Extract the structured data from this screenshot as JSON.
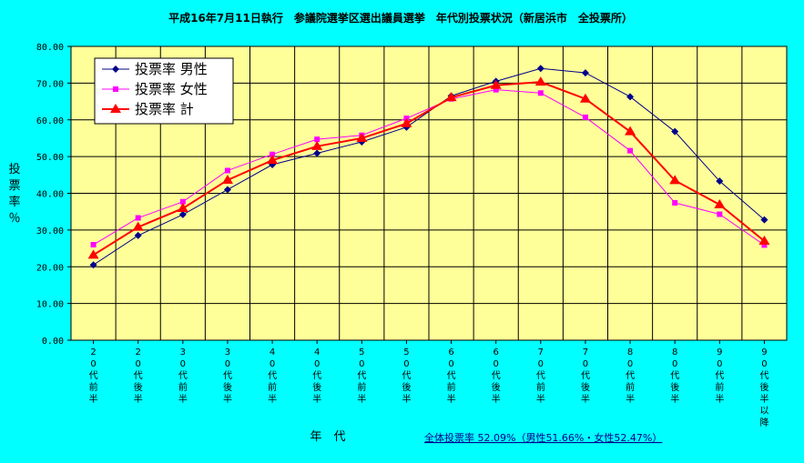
{
  "chart_data": {
    "type": "line",
    "title": "平成16年7月11日執行　参議院選挙区選出議員選挙　年代別投票状況（新居浜市　全投票所）",
    "xlabel": "年　代",
    "ylabel": "投票率％",
    "ylim": [
      0,
      80
    ],
    "yticks": [
      "0.00",
      "10.00",
      "20.00",
      "30.00",
      "40.00",
      "50.00",
      "60.00",
      "70.00",
      "80.00"
    ],
    "categories": [
      "20代前半",
      "20代後半",
      "30代前半",
      "30代後半",
      "40代前半",
      "40代後半",
      "50代前半",
      "50代後半",
      "60代前半",
      "60代後半",
      "70代前半",
      "70代後半",
      "80代前半",
      "80代後半",
      "90代前半",
      "90代後半以降"
    ],
    "series": [
      {
        "name": "投票率 男性",
        "color": "#00008B",
        "marker": "diamond",
        "values": [
          20.5,
          28.5,
          34.2,
          41.0,
          47.8,
          50.9,
          54.0,
          58.0,
          66.5,
          70.5,
          74.0,
          72.8,
          66.3,
          56.8,
          43.3,
          32.8
        ]
      },
      {
        "name": "投票率 女性",
        "color": "#FF00FF",
        "marker": "square",
        "values": [
          26.0,
          33.3,
          37.7,
          46.2,
          50.6,
          54.7,
          55.8,
          60.4,
          65.7,
          68.2,
          67.3,
          60.7,
          51.6,
          37.4,
          34.3,
          25.9
        ]
      },
      {
        "name": "投票率 計",
        "color": "#FF0000",
        "marker": "triangle",
        "values": [
          23.2,
          30.8,
          35.9,
          43.6,
          49.0,
          52.8,
          55.0,
          59.0,
          66.1,
          69.4,
          70.3,
          65.7,
          56.8,
          43.5,
          36.9,
          27.0
        ]
      }
    ],
    "grid": true,
    "legend": "top-left",
    "note": "全体投票率 52.09%（男性51.66%・女性52.47%）"
  }
}
